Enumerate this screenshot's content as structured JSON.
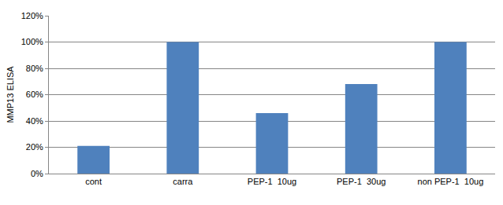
{
  "chart_data": {
    "type": "bar",
    "y_label": "MMP13 ELISA",
    "categories": [
      "cont",
      "carra",
      "PEP-1  10ug",
      "PEP-1  30ug",
      "non PEP-1  10ug"
    ],
    "values": [
      21,
      100,
      46,
      68,
      100
    ],
    "color": "#4f81bd",
    "ylim": [
      0,
      120
    ],
    "yticks": [
      {
        "value": 0,
        "label": "0%"
      },
      {
        "value": 20,
        "label": "20%"
      },
      {
        "value": 40,
        "label": "40%"
      },
      {
        "value": 60,
        "label": "60%"
      },
      {
        "value": 80,
        "label": "80%"
      },
      {
        "value": 100,
        "label": "100%"
      },
      {
        "value": 120,
        "label": "120%"
      }
    ],
    "grid": true
  }
}
